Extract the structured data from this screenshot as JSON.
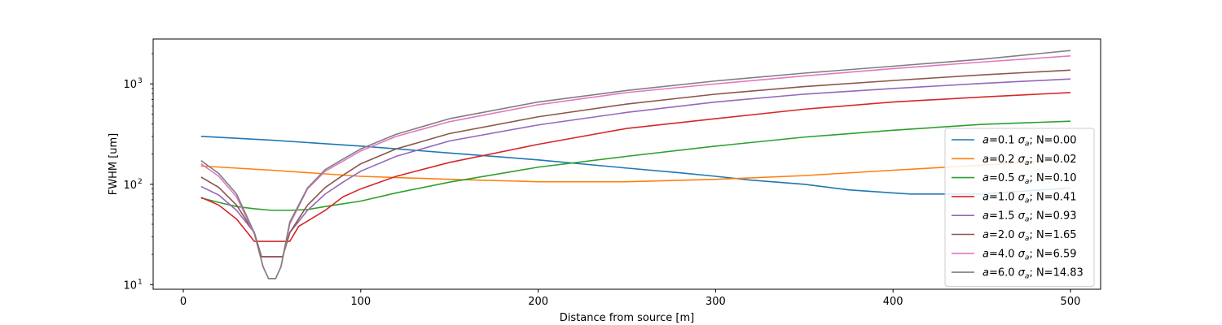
{
  "chart_data": {
    "type": "line",
    "title": "",
    "xlabel": "Distance from source [m]",
    "ylabel": "FWHM [um]",
    "xlim": [
      -17,
      517
    ],
    "ylim": [
      9,
      2800
    ],
    "yscale": "log",
    "grid": false,
    "legend_position": "right",
    "x_ticks": [
      {
        "value": 0,
        "label": "0"
      },
      {
        "value": 100,
        "label": "100"
      },
      {
        "value": 200,
        "label": "200"
      },
      {
        "value": 300,
        "label": "300"
      },
      {
        "value": 400,
        "label": "400"
      },
      {
        "value": 500,
        "label": "500"
      }
    ],
    "y_ticks": [
      {
        "value": 10,
        "base": "10",
        "exp": "1"
      },
      {
        "value": 100,
        "base": "10",
        "exp": "2"
      },
      {
        "value": 1000,
        "base": "10",
        "exp": "3"
      }
    ],
    "series": [
      {
        "name": "a=0.1 σa; N=0.00",
        "label_prefix": "a",
        "label_mid": "=0.1 ",
        "label_sigma": "σ",
        "label_sub": "a",
        "label_suffix": "; N=0.00",
        "color": "#1f77b4",
        "x": [
          10,
          50,
          100,
          150,
          200,
          250,
          280,
          300,
          320,
          350,
          375,
          400,
          410,
          450,
          500
        ],
        "y": [
          300,
          275,
          240,
          205,
          175,
          145,
          130,
          120,
          110,
          100,
          88,
          82,
          80,
          80,
          92
        ]
      },
      {
        "name": "a=0.2 σa; N=0.02",
        "label_prefix": "a",
        "label_mid": "=0.2 ",
        "label_sigma": "σ",
        "label_sub": "a",
        "label_suffix": "; N=0.02",
        "color": "#ff7f0e",
        "x": [
          10,
          50,
          100,
          150,
          200,
          250,
          300,
          350,
          400,
          450,
          500
        ],
        "y": [
          152,
          138,
          120,
          112,
          106,
          106,
          112,
          122,
          138,
          155,
          178
        ]
      },
      {
        "name": "a=0.5 σa; N=0.10",
        "label_prefix": "a",
        "label_mid": "=0.5 ",
        "label_sigma": "σ",
        "label_sub": "a",
        "label_suffix": "; N=0.10",
        "color": "#2ca02c",
        "x": [
          10,
          20,
          30,
          40,
          50,
          60,
          70,
          80,
          100,
          120,
          150,
          200,
          250,
          300,
          350,
          400,
          450,
          500
        ],
        "y": [
          73,
          66,
          60,
          57,
          55,
          55,
          56,
          60,
          68,
          82,
          105,
          148,
          190,
          240,
          295,
          345,
          395,
          425
        ]
      },
      {
        "name": "a=1.0 σa; N=0.41",
        "label_prefix": "a",
        "label_mid": "=1.0 ",
        "label_sigma": "σ",
        "label_sub": "a",
        "label_suffix": "; N=0.41",
        "color": "#d62728",
        "x": [
          10,
          20,
          30,
          35,
          40,
          50,
          60,
          65,
          70,
          80,
          90,
          100,
          120,
          150,
          200,
          250,
          300,
          350,
          400,
          450,
          500
        ],
        "y": [
          74,
          62,
          45,
          35,
          27,
          27,
          27,
          38,
          43,
          55,
          75,
          90,
          120,
          165,
          250,
          360,
          450,
          560,
          660,
          740,
          820
        ]
      },
      {
        "name": "a=1.5 σa; N=0.93",
        "label_prefix": "a",
        "label_mid": "=1.5 ",
        "label_sigma": "σ",
        "label_sub": "a",
        "label_suffix": "; N=0.93",
        "color": "#9467bd",
        "x": [
          10,
          20,
          30,
          40,
          44,
          50,
          56,
          60,
          70,
          80,
          90,
          100,
          120,
          150,
          200,
          250,
          300,
          350,
          400,
          450,
          500
        ],
        "y": [
          95,
          78,
          55,
          33,
          19,
          19,
          19,
          33,
          55,
          80,
          105,
          135,
          190,
          270,
          390,
          520,
          660,
          790,
          900,
          1010,
          1120
        ]
      },
      {
        "name": "a=2.0 σa; N=1.65",
        "label_prefix": "a",
        "label_mid": "=2.0 ",
        "label_sigma": "σ",
        "label_sub": "a",
        "label_suffix": "; N=1.65",
        "color": "#8c564b",
        "x": [
          10,
          20,
          30,
          40,
          44,
          50,
          56,
          60,
          70,
          80,
          90,
          100,
          120,
          150,
          200,
          250,
          300,
          350,
          400,
          450,
          500
        ],
        "y": [
          118,
          93,
          62,
          33,
          19,
          19,
          19,
          33,
          62,
          93,
          123,
          160,
          225,
          320,
          470,
          630,
          790,
          940,
          1080,
          1230,
          1370
        ]
      },
      {
        "name": "a=4.0 σa; N=6.59",
        "label_prefix": "a",
        "label_mid": "=4.0 ",
        "label_sigma": "σ",
        "label_sub": "a",
        "label_suffix": "; N=6.59",
        "color": "#e377c2",
        "x": [
          10,
          20,
          30,
          40,
          45,
          48,
          52,
          55,
          60,
          70,
          80,
          90,
          100,
          120,
          150,
          200,
          250,
          300,
          350,
          400,
          450,
          500
        ],
        "y": [
          160,
          120,
          75,
          32,
          15,
          11.5,
          11.5,
          15,
          40,
          90,
          135,
          170,
          215,
          300,
          420,
          620,
          820,
          1000,
          1200,
          1420,
          1650,
          1900
        ]
      },
      {
        "name": "a=6.0 σa; N=14.83",
        "label_prefix": "a",
        "label_mid": "=6.0 ",
        "label_sigma": "σ",
        "label_sub": "a",
        "label_suffix": "; N=14.83",
        "color": "#7f7f7f",
        "x": [
          10,
          20,
          30,
          40,
          45,
          48,
          52,
          55,
          60,
          70,
          80,
          90,
          100,
          120,
          150,
          200,
          250,
          300,
          350,
          400,
          450,
          500
        ],
        "y": [
          172,
          128,
          80,
          33,
          15,
          11.5,
          11.5,
          15,
          42,
          92,
          140,
          178,
          225,
          315,
          450,
          660,
          860,
          1070,
          1280,
          1500,
          1760,
          2150
        ]
      }
    ]
  }
}
